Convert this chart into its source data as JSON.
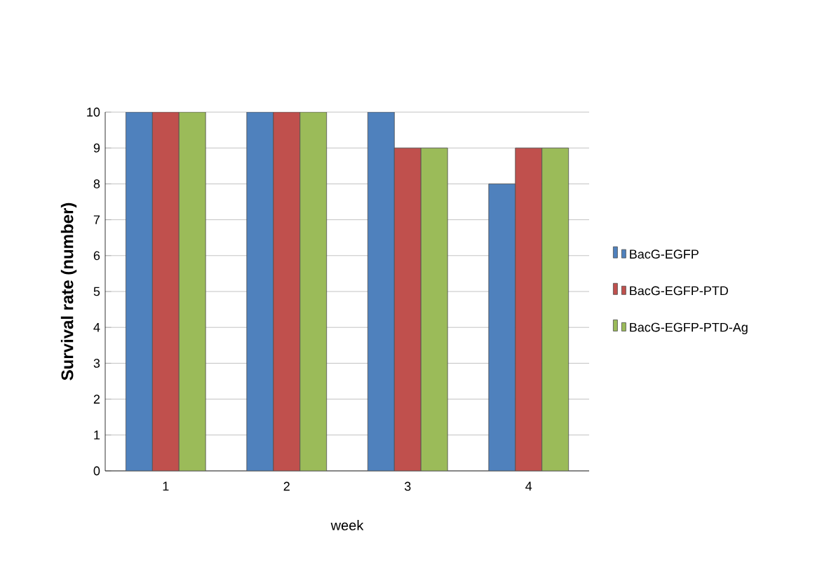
{
  "chart_data": {
    "type": "bar",
    "xlabel": "week",
    "ylabel": "Survival rate (number)",
    "categories": [
      "1",
      "2",
      "3",
      "4"
    ],
    "series": [
      {
        "name": "BacG-EGFP",
        "color": "#4f81bd",
        "values": [
          10,
          10,
          10,
          8
        ]
      },
      {
        "name": "BacG-EGFP-PTD",
        "color": "#c0504d",
        "values": [
          10,
          10,
          9,
          9
        ]
      },
      {
        "name": "BacG-EGFP-PTD-Ag",
        "color": "#9bbb59",
        "values": [
          10,
          10,
          9,
          9
        ]
      }
    ],
    "ylim": [
      0,
      10
    ],
    "yticks": [
      0,
      1,
      2,
      3,
      4,
      5,
      6,
      7,
      8,
      9,
      10
    ],
    "grid": "y",
    "legend": "right"
  }
}
